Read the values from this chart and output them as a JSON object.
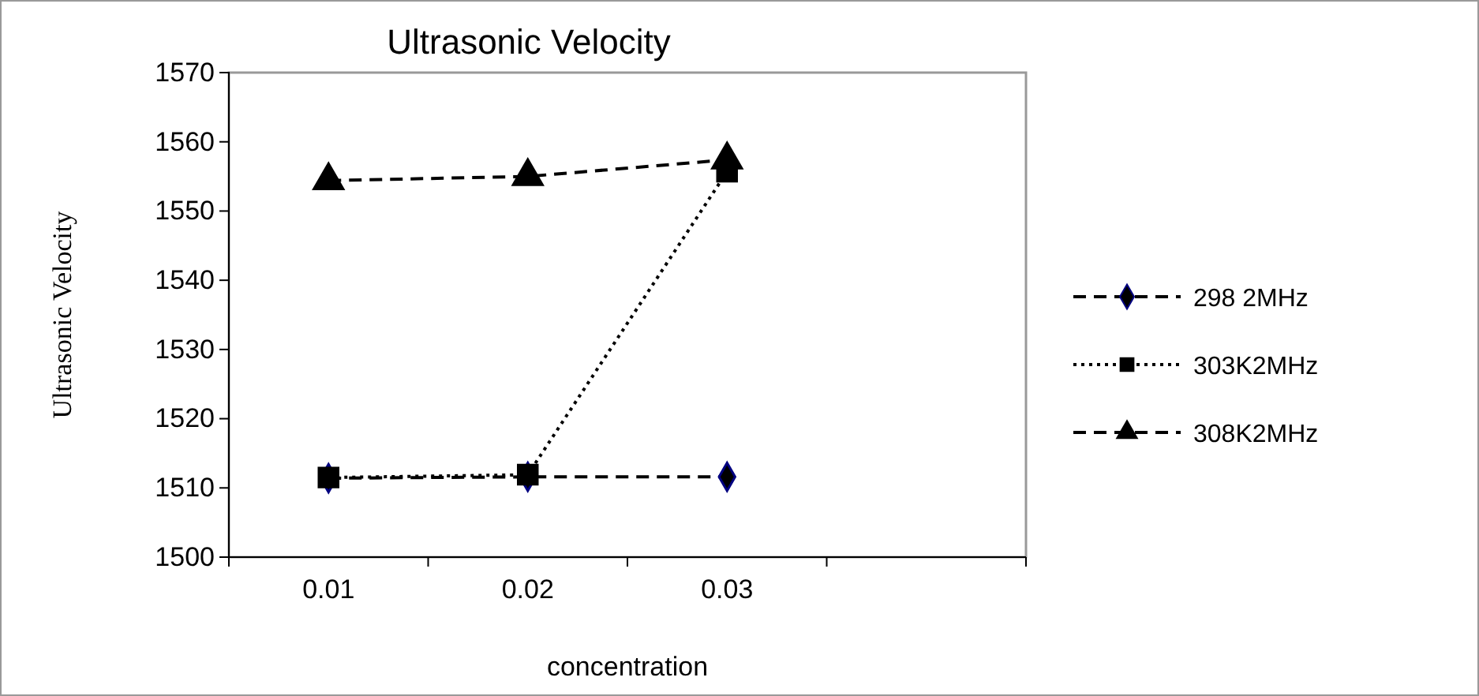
{
  "chart_data": {
    "type": "line",
    "title": "Ultrasonic Velocity",
    "xlabel": "concentration",
    "ylabel": "Ultrasonic Velocity",
    "categories": [
      "0.01",
      "0.02",
      "0.03",
      null
    ],
    "series": [
      {
        "name": "298 2MHz",
        "color": "#000080",
        "values": [
          1511.4,
          1511.6,
          1511.6,
          null
        ],
        "marker": "diamond",
        "line_style": "dashed"
      },
      {
        "name": "303K2MHz",
        "color": "#000000",
        "values": [
          1511.5,
          1511.9,
          1555.7,
          null
        ],
        "marker": "square",
        "line_style": "dotted"
      },
      {
        "name": "308K2MHz",
        "color": "#000000",
        "values": [
          1554.4,
          1555,
          1557.4,
          null
        ],
        "marker": "triangle",
        "line_style": "dashed"
      }
    ],
    "ylim": [
      1500,
      1570
    ],
    "yticks": [
      1500,
      1510,
      1520,
      1530,
      1540,
      1550,
      1560,
      1570
    ],
    "grid": false,
    "legend": "right"
  }
}
